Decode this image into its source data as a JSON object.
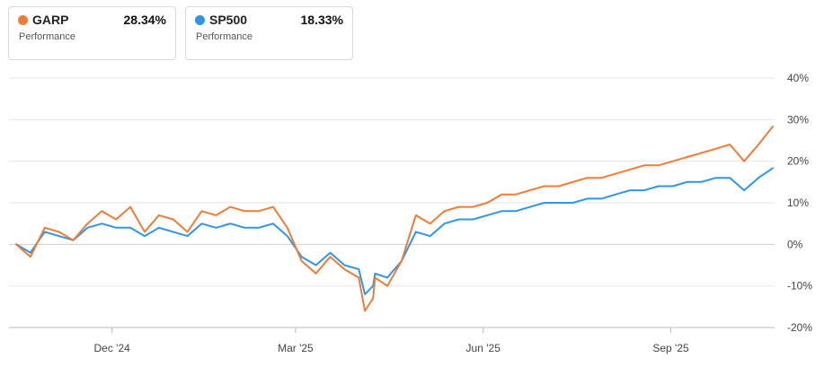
{
  "legend": [
    {
      "ticker": "GARP",
      "label": "Performance",
      "value": "28.34%",
      "color": "#f07b35"
    },
    {
      "ticker": "SP500",
      "label": "Performance",
      "value": "18.33%",
      "color": "#2f95e8"
    }
  ],
  "chart_data": {
    "type": "line",
    "xlabel": "",
    "ylabel": "",
    "x_ticks": [
      "Dec '24",
      "Mar '25",
      "Jun '25",
      "Sep '25"
    ],
    "y_ticks": [
      "40%",
      "30%",
      "20%",
      "10%",
      "0%",
      "-10%",
      "-20%"
    ],
    "ylim": [
      -20,
      40
    ],
    "grid": "horizontal",
    "legend_position": "top-left",
    "x": [
      "2024-10-15",
      "2024-10-22",
      "2024-10-29",
      "2024-11-05",
      "2024-11-12",
      "2024-11-19",
      "2024-11-26",
      "2024-12-03",
      "2024-12-10",
      "2024-12-17",
      "2024-12-24",
      "2024-12-31",
      "2025-01-07",
      "2025-01-14",
      "2025-01-21",
      "2025-01-28",
      "2025-02-04",
      "2025-02-11",
      "2025-02-18",
      "2025-02-25",
      "2025-03-04",
      "2025-03-11",
      "2025-03-18",
      "2025-03-25",
      "2025-04-01",
      "2025-04-04",
      "2025-04-08",
      "2025-04-09",
      "2025-04-15",
      "2025-04-22",
      "2025-04-29",
      "2025-05-06",
      "2025-05-13",
      "2025-05-20",
      "2025-05-27",
      "2025-06-03",
      "2025-06-10",
      "2025-06-17",
      "2025-06-24",
      "2025-07-01",
      "2025-07-08",
      "2025-07-15",
      "2025-07-22",
      "2025-07-29",
      "2025-08-05",
      "2025-08-12",
      "2025-08-19",
      "2025-08-26",
      "2025-09-02",
      "2025-09-09",
      "2025-09-16",
      "2025-09-23",
      "2025-09-30",
      "2025-10-07",
      "2025-10-14",
      "2025-10-21"
    ],
    "series": [
      {
        "name": "GARP",
        "color": "#f07b35",
        "values": [
          0,
          -3,
          4,
          3,
          1,
          5,
          8,
          6,
          9,
          3,
          7,
          6,
          3,
          8,
          7,
          9,
          8,
          8,
          9,
          4,
          -4,
          -7,
          -3,
          -6,
          -8,
          -16,
          -13,
          -8,
          -10,
          -4,
          7,
          5,
          8,
          9,
          9,
          10,
          12,
          12,
          13,
          14,
          14,
          15,
          16,
          16,
          17,
          18,
          19,
          19,
          20,
          21,
          22,
          23,
          24,
          20,
          24,
          28.34
        ]
      },
      {
        "name": "SP500",
        "color": "#2f95e8",
        "values": [
          0,
          -2,
          3,
          2,
          1,
          4,
          5,
          4,
          4,
          2,
          4,
          3,
          2,
          5,
          4,
          5,
          4,
          4,
          5,
          2,
          -3,
          -5,
          -2,
          -5,
          -6,
          -12,
          -10,
          -7,
          -8,
          -4,
          3,
          2,
          5,
          6,
          6,
          7,
          8,
          8,
          9,
          10,
          10,
          10,
          11,
          11,
          12,
          13,
          13,
          14,
          14,
          15,
          15,
          16,
          16,
          13,
          16,
          18.33
        ]
      }
    ]
  }
}
